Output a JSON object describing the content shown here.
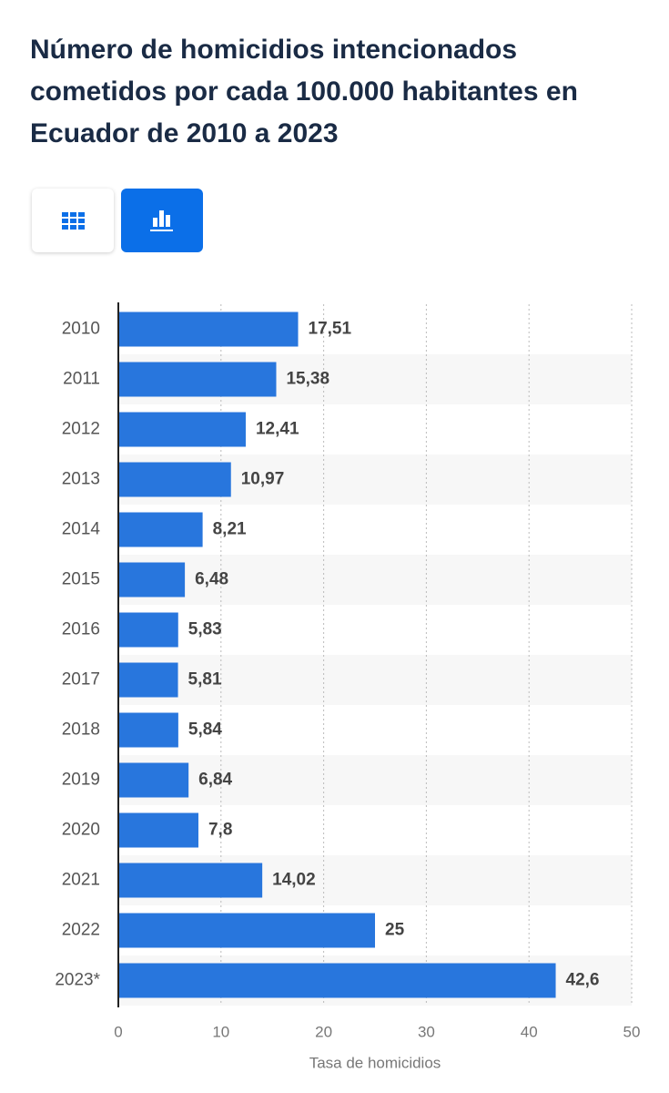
{
  "chart_data": {
    "type": "hbar",
    "title": "Número de homicidios intencionados cometidos por cada 100.000 habitantes en Ecuador de 2010 a 2023",
    "categories": [
      "2010",
      "2011",
      "2012",
      "2013",
      "2014",
      "2015",
      "2016",
      "2017",
      "2018",
      "2019",
      "2020",
      "2021",
      "2022",
      "2023*"
    ],
    "values": [
      17.51,
      15.38,
      12.41,
      10.97,
      8.21,
      6.48,
      5.83,
      5.81,
      5.84,
      6.84,
      7.8,
      14.02,
      25,
      42.6
    ],
    "value_labels": [
      "17,51",
      "15,38",
      "12,41",
      "10,97",
      "8,21",
      "6,48",
      "5,83",
      "5,81",
      "5,84",
      "6,84",
      "7,8",
      "14,02",
      "25",
      "42,6"
    ],
    "color": "#2876dd",
    "xlim": [
      0,
      50
    ],
    "xticks": [
      0,
      10,
      20,
      30,
      40,
      50
    ],
    "xlabel": "Tasa de homicidios",
    "grid": true
  }
}
